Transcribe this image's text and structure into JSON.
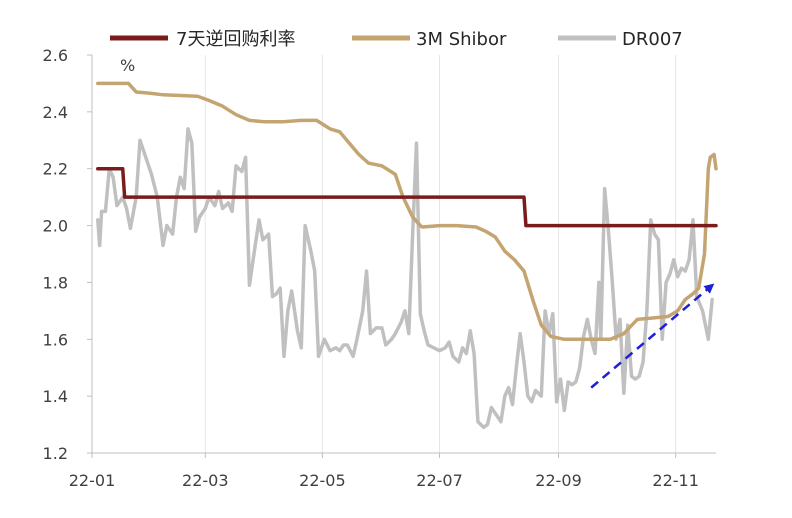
{
  "chart_data": {
    "type": "line",
    "title": "",
    "xlabel": "",
    "ylabel": "",
    "unit_label": "%",
    "ylim": [
      1.2,
      2.6
    ],
    "y_ticks": [
      "1.2",
      "1.4",
      "1.6",
      "1.8",
      "2.0",
      "2.2",
      "2.4",
      "2.6"
    ],
    "x_ticks": [
      "22-01",
      "22-03",
      "22-05",
      "22-07",
      "22-09",
      "22-11"
    ],
    "x_tick_dates": [
      "2022-01-01",
      "2022-03-01",
      "2022-05-01",
      "2022-07-01",
      "2022-09-01",
      "2022-11-01"
    ],
    "x_range": [
      "2022-01-01",
      "2022-11-22"
    ],
    "grid": "vertical",
    "legend_position": "top",
    "series": [
      {
        "name": "7天逆回购利率",
        "color": "#7b1c1c",
        "points": [
          [
            "2022-01-04",
            2.2
          ],
          [
            "2022-01-17",
            2.2
          ],
          [
            "2022-01-18",
            2.1
          ],
          [
            "2022-08-14",
            2.1
          ],
          [
            "2022-08-15",
            2.0
          ],
          [
            "2022-11-22",
            2.0
          ]
        ]
      },
      {
        "name": "3M Shibor",
        "color": "#c4a572",
        "points": [
          [
            "2022-01-04",
            2.5
          ],
          [
            "2022-01-20",
            2.5
          ],
          [
            "2022-01-24",
            2.47
          ],
          [
            "2022-02-01",
            2.465
          ],
          [
            "2022-02-07",
            2.46
          ],
          [
            "2022-02-25",
            2.455
          ],
          [
            "2022-03-03",
            2.44
          ],
          [
            "2022-03-10",
            2.42
          ],
          [
            "2022-03-17",
            2.39
          ],
          [
            "2022-03-24",
            2.37
          ],
          [
            "2022-04-01",
            2.365
          ],
          [
            "2022-04-10",
            2.365
          ],
          [
            "2022-04-20",
            2.37
          ],
          [
            "2022-04-28",
            2.37
          ],
          [
            "2022-05-05",
            2.34
          ],
          [
            "2022-05-10",
            2.33
          ],
          [
            "2022-05-15",
            2.29
          ],
          [
            "2022-05-20",
            2.25
          ],
          [
            "2022-05-25",
            2.22
          ],
          [
            "2022-06-01",
            2.21
          ],
          [
            "2022-06-08",
            2.18
          ],
          [
            "2022-06-12",
            2.1
          ],
          [
            "2022-06-17",
            2.03
          ],
          [
            "2022-06-21",
            2.0
          ],
          [
            "2022-06-22",
            1.995
          ],
          [
            "2022-07-01",
            2.0
          ],
          [
            "2022-07-10",
            2.0
          ],
          [
            "2022-07-20",
            1.995
          ],
          [
            "2022-07-25",
            1.98
          ],
          [
            "2022-07-30",
            1.96
          ],
          [
            "2022-08-04",
            1.91
          ],
          [
            "2022-08-09",
            1.88
          ],
          [
            "2022-08-14",
            1.84
          ],
          [
            "2022-08-19",
            1.73
          ],
          [
            "2022-08-23",
            1.65
          ],
          [
            "2022-08-28",
            1.61
          ],
          [
            "2022-09-04",
            1.6
          ],
          [
            "2022-09-15",
            1.6
          ],
          [
            "2022-09-28",
            1.6
          ],
          [
            "2022-10-05",
            1.62
          ],
          [
            "2022-10-12",
            1.67
          ],
          [
            "2022-10-20",
            1.675
          ],
          [
            "2022-10-28",
            1.68
          ],
          [
            "2022-11-02",
            1.7
          ],
          [
            "2022-11-06",
            1.74
          ],
          [
            "2022-11-10",
            1.76
          ],
          [
            "2022-11-13",
            1.78
          ],
          [
            "2022-11-16",
            1.9
          ],
          [
            "2022-11-18",
            2.2
          ],
          [
            "2022-11-19",
            2.24
          ],
          [
            "2022-11-21",
            2.25
          ],
          [
            "2022-11-22",
            2.2
          ]
        ]
      },
      {
        "name": "DR007",
        "color": "#c0c0c0",
        "points": [
          [
            "2022-01-04",
            2.02
          ],
          [
            "2022-01-05",
            1.93
          ],
          [
            "2022-01-06",
            2.05
          ],
          [
            "2022-01-08",
            2.05
          ],
          [
            "2022-01-10",
            2.2
          ],
          [
            "2022-01-12",
            2.17
          ],
          [
            "2022-01-14",
            2.07
          ],
          [
            "2022-01-17",
            2.1
          ],
          [
            "2022-01-19",
            2.06
          ],
          [
            "2022-01-21",
            1.99
          ],
          [
            "2022-01-24",
            2.1
          ],
          [
            "2022-01-26",
            2.3
          ],
          [
            "2022-01-29",
            2.24
          ],
          [
            "2022-02-01",
            2.18
          ],
          [
            "2022-02-04",
            2.1
          ],
          [
            "2022-02-07",
            1.93
          ],
          [
            "2022-02-09",
            2.0
          ],
          [
            "2022-02-12",
            1.97
          ],
          [
            "2022-02-14",
            2.1
          ],
          [
            "2022-02-16",
            2.17
          ],
          [
            "2022-02-18",
            2.13
          ],
          [
            "2022-02-20",
            2.34
          ],
          [
            "2022-02-22",
            2.29
          ],
          [
            "2022-02-24",
            1.98
          ],
          [
            "2022-02-26",
            2.03
          ],
          [
            "2022-03-01",
            2.06
          ],
          [
            "2022-03-03",
            2.1
          ],
          [
            "2022-03-06",
            2.07
          ],
          [
            "2022-03-08",
            2.12
          ],
          [
            "2022-03-10",
            2.06
          ],
          [
            "2022-03-13",
            2.08
          ],
          [
            "2022-03-15",
            2.05
          ],
          [
            "2022-03-17",
            2.21
          ],
          [
            "2022-03-20",
            2.19
          ],
          [
            "2022-03-22",
            2.24
          ],
          [
            "2022-03-24",
            1.79
          ],
          [
            "2022-03-27",
            1.93
          ],
          [
            "2022-03-29",
            2.02
          ],
          [
            "2022-03-31",
            1.95
          ],
          [
            "2022-04-03",
            1.97
          ],
          [
            "2022-04-05",
            1.75
          ],
          [
            "2022-04-07",
            1.76
          ],
          [
            "2022-04-09",
            1.78
          ],
          [
            "2022-04-11",
            1.54
          ],
          [
            "2022-04-13",
            1.7
          ],
          [
            "2022-04-15",
            1.77
          ],
          [
            "2022-04-18",
            1.63
          ],
          [
            "2022-04-20",
            1.57
          ],
          [
            "2022-04-22",
            2.0
          ],
          [
            "2022-04-25",
            1.91
          ],
          [
            "2022-04-27",
            1.84
          ],
          [
            "2022-04-29",
            1.54
          ],
          [
            "2022-05-02",
            1.6
          ],
          [
            "2022-05-05",
            1.56
          ],
          [
            "2022-05-08",
            1.57
          ],
          [
            "2022-05-10",
            1.56
          ],
          [
            "2022-05-12",
            1.58
          ],
          [
            "2022-05-14",
            1.58
          ],
          [
            "2022-05-17",
            1.54
          ],
          [
            "2022-05-19",
            1.6
          ],
          [
            "2022-05-22",
            1.7
          ],
          [
            "2022-05-24",
            1.84
          ],
          [
            "2022-05-26",
            1.62
          ],
          [
            "2022-05-29",
            1.64
          ],
          [
            "2022-06-01",
            1.64
          ],
          [
            "2022-06-03",
            1.58
          ],
          [
            "2022-06-06",
            1.6
          ],
          [
            "2022-06-08",
            1.62
          ],
          [
            "2022-06-11",
            1.66
          ],
          [
            "2022-06-13",
            1.7
          ],
          [
            "2022-06-15",
            1.62
          ],
          [
            "2022-06-17",
            1.97
          ],
          [
            "2022-06-19",
            2.29
          ],
          [
            "2022-06-21",
            1.69
          ],
          [
            "2022-06-23",
            1.63
          ],
          [
            "2022-06-25",
            1.58
          ],
          [
            "2022-06-28",
            1.57
          ],
          [
            "2022-07-01",
            1.56
          ],
          [
            "2022-07-04",
            1.57
          ],
          [
            "2022-07-06",
            1.59
          ],
          [
            "2022-07-08",
            1.54
          ],
          [
            "2022-07-11",
            1.52
          ],
          [
            "2022-07-13",
            1.57
          ],
          [
            "2022-07-15",
            1.55
          ],
          [
            "2022-07-17",
            1.63
          ],
          [
            "2022-07-19",
            1.55
          ],
          [
            "2022-07-21",
            1.31
          ],
          [
            "2022-07-24",
            1.29
          ],
          [
            "2022-07-26",
            1.3
          ],
          [
            "2022-07-28",
            1.36
          ],
          [
            "2022-07-30",
            1.34
          ],
          [
            "2022-08-02",
            1.31
          ],
          [
            "2022-08-04",
            1.4
          ],
          [
            "2022-08-06",
            1.43
          ],
          [
            "2022-08-08",
            1.37
          ],
          [
            "2022-08-10",
            1.5
          ],
          [
            "2022-08-12",
            1.62
          ],
          [
            "2022-08-14",
            1.52
          ],
          [
            "2022-08-16",
            1.4
          ],
          [
            "2022-08-18",
            1.38
          ],
          [
            "2022-08-20",
            1.42
          ],
          [
            "2022-08-23",
            1.4
          ],
          [
            "2022-08-25",
            1.7
          ],
          [
            "2022-08-27",
            1.62
          ],
          [
            "2022-08-29",
            1.69
          ],
          [
            "2022-08-31",
            1.38
          ],
          [
            "2022-09-02",
            1.46
          ],
          [
            "2022-09-04",
            1.35
          ],
          [
            "2022-09-06",
            1.45
          ],
          [
            "2022-09-08",
            1.44
          ],
          [
            "2022-09-10",
            1.45
          ],
          [
            "2022-09-12",
            1.5
          ],
          [
            "2022-09-14",
            1.61
          ],
          [
            "2022-09-16",
            1.67
          ],
          [
            "2022-09-18",
            1.6
          ],
          [
            "2022-09-20",
            1.55
          ],
          [
            "2022-09-22",
            1.8
          ],
          [
            "2022-09-23",
            1.6
          ],
          [
            "2022-09-25",
            2.13
          ],
          [
            "2022-09-27",
            1.98
          ],
          [
            "2022-09-29",
            1.8
          ],
          [
            "2022-10-01",
            1.6
          ],
          [
            "2022-10-03",
            1.67
          ],
          [
            "2022-10-05",
            1.41
          ],
          [
            "2022-10-07",
            1.65
          ],
          [
            "2022-10-09",
            1.47
          ],
          [
            "2022-10-11",
            1.46
          ],
          [
            "2022-10-13",
            1.47
          ],
          [
            "2022-10-15",
            1.52
          ],
          [
            "2022-10-17",
            1.7
          ],
          [
            "2022-10-19",
            2.02
          ],
          [
            "2022-10-21",
            1.97
          ],
          [
            "2022-10-23",
            1.95
          ],
          [
            "2022-10-25",
            1.6
          ],
          [
            "2022-10-27",
            1.8
          ],
          [
            "2022-10-29",
            1.83
          ],
          [
            "2022-10-31",
            1.88
          ],
          [
            "2022-11-02",
            1.82
          ],
          [
            "2022-11-04",
            1.85
          ],
          [
            "2022-11-06",
            1.84
          ],
          [
            "2022-11-08",
            1.88
          ],
          [
            "2022-11-10",
            2.02
          ],
          [
            "2022-11-12",
            1.75
          ],
          [
            "2022-11-15",
            1.7
          ],
          [
            "2022-11-18",
            1.6
          ],
          [
            "2022-11-20",
            1.74
          ]
        ]
      }
    ],
    "annotation": {
      "type": "dashed-arrow",
      "color": "#1f1fd8",
      "from": [
        "2022-09-18",
        1.43
      ],
      "to": [
        "2022-11-22",
        1.8
      ]
    }
  }
}
